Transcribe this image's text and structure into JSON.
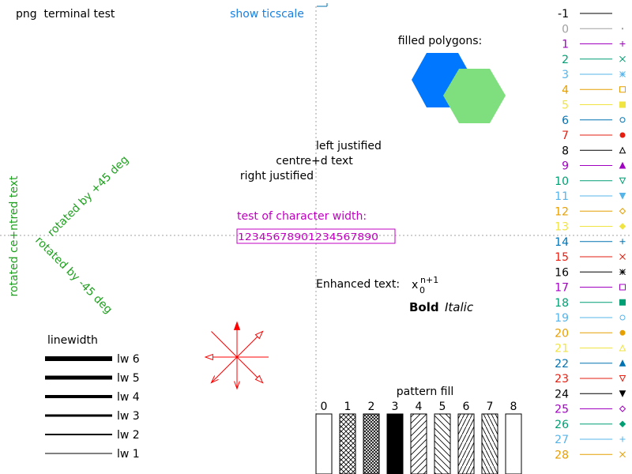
{
  "title": "png  terminal test",
  "ticscale_label": "show ticscale",
  "polygons": {
    "label": "filled polygons:",
    "colors": [
      "#0077ff",
      "#7fdf7f"
    ]
  },
  "justification": {
    "left": "left justified",
    "centre": "centre+d text",
    "right": "right justified"
  },
  "char_width": {
    "label": "test of character width:",
    "sample": "12345678901234567890",
    "color": "#c000c0"
  },
  "rotated": {
    "vertical": "rotated ce+ntred text",
    "plus45": "rotated by +45 deg",
    "minus45": "rotated by -45 deg",
    "color": "#20a020"
  },
  "enhanced": {
    "label": "Enhanced text:",
    "base": "x",
    "subscript": "0",
    "superscript": "n+1",
    "bold": "Bold",
    "italic": "Italic"
  },
  "linewidth": {
    "title": "linewidth",
    "items": [
      {
        "label": "lw 6",
        "width": 6
      },
      {
        "label": "lw 5",
        "width": 5
      },
      {
        "label": "lw 4",
        "width": 4
      },
      {
        "label": "lw 3",
        "width": 3
      },
      {
        "label": "lw 2",
        "width": 2
      },
      {
        "label": "lw 1",
        "width": 1
      }
    ]
  },
  "pattern_fill": {
    "title": "pattern fill",
    "labels": [
      "0",
      "1",
      "2",
      "3",
      "4",
      "5",
      "6",
      "7",
      "8"
    ]
  },
  "arrow_color": "#ff0000",
  "line_types": [
    {
      "label": "-1",
      "color": "#000000",
      "point": "none"
    },
    {
      "label": "0",
      "color": "#a0a0a0",
      "point": "dot"
    },
    {
      "label": "1",
      "color": "#a000c0",
      "point": "plus"
    },
    {
      "label": "2",
      "color": "#009e73",
      "point": "cross"
    },
    {
      "label": "3",
      "color": "#56b4e9",
      "point": "star"
    },
    {
      "label": "4",
      "color": "#e69f00",
      "point": "box"
    },
    {
      "label": "5",
      "color": "#f0e442",
      "point": "fbox"
    },
    {
      "label": "6",
      "color": "#0072b2",
      "point": "circle"
    },
    {
      "label": "7",
      "color": "#e51e10",
      "point": "fcircle"
    },
    {
      "label": "8",
      "color": "#000000",
      "point": "tri"
    },
    {
      "label": "9",
      "color": "#a000c0",
      "point": "ftri"
    },
    {
      "label": "10",
      "color": "#009e73",
      "point": "itri"
    },
    {
      "label": "11",
      "color": "#56b4e9",
      "point": "fitri"
    },
    {
      "label": "12",
      "color": "#e69f00",
      "point": "diamond"
    },
    {
      "label": "13",
      "color": "#f0e442",
      "point": "fdiamond"
    },
    {
      "label": "14",
      "color": "#0072b2",
      "point": "plus"
    },
    {
      "label": "15",
      "color": "#e51e10",
      "point": "cross"
    },
    {
      "label": "16",
      "color": "#000000",
      "point": "star"
    },
    {
      "label": "17",
      "color": "#a000c0",
      "point": "box"
    },
    {
      "label": "18",
      "color": "#009e73",
      "point": "fbox"
    },
    {
      "label": "19",
      "color": "#56b4e9",
      "point": "circle"
    },
    {
      "label": "20",
      "color": "#e69f00",
      "point": "fcircle"
    },
    {
      "label": "21",
      "color": "#f0e442",
      "point": "tri"
    },
    {
      "label": "22",
      "color": "#0072b2",
      "point": "ftri"
    },
    {
      "label": "23",
      "color": "#e51e10",
      "point": "itri"
    },
    {
      "label": "24",
      "color": "#000000",
      "point": "fitri"
    },
    {
      "label": "25",
      "color": "#a000c0",
      "point": "diamond"
    },
    {
      "label": "26",
      "color": "#009e73",
      "point": "fdiamond"
    },
    {
      "label": "27",
      "color": "#56b4e9",
      "point": "plus"
    },
    {
      "label": "28",
      "color": "#e69f00",
      "point": "cross"
    }
  ]
}
